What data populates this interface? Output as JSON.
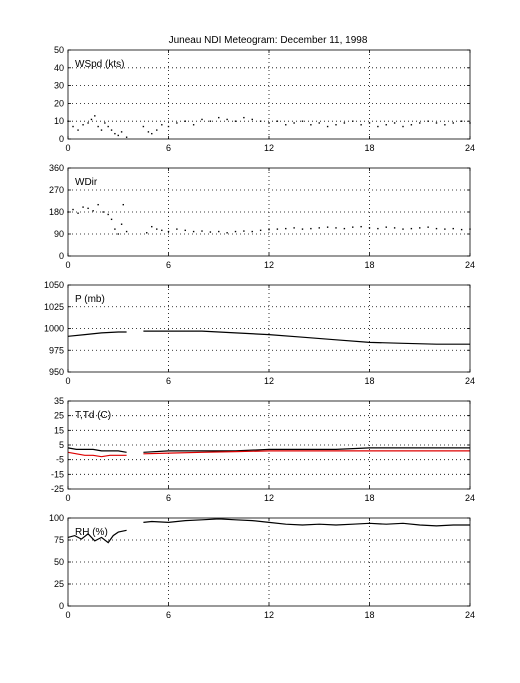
{
  "title": "Juneau NDI Meteogram:   December 11, 1998",
  "chart_data": [
    {
      "type": "scatter",
      "label": "WSpd (kts)",
      "xlim": [
        0,
        24
      ],
      "xticks": [
        0,
        6,
        12,
        18,
        24
      ],
      "ylim": [
        0,
        50
      ],
      "yticks": [
        0,
        10,
        20,
        30,
        40,
        50
      ],
      "grid": true,
      "series": [
        {
          "color": "#000000",
          "points": [
            [
              0.0,
              10
            ],
            [
              0.3,
              7
            ],
            [
              0.6,
              5
            ],
            [
              0.9,
              8
            ],
            [
              1.2,
              9
            ],
            [
              1.4,
              11
            ],
            [
              1.6,
              13
            ],
            [
              1.8,
              7
            ],
            [
              2.0,
              5
            ],
            [
              2.2,
              9
            ],
            [
              2.4,
              7
            ],
            [
              2.6,
              5
            ],
            [
              2.8,
              3
            ],
            [
              3.0,
              2
            ],
            [
              3.2,
              4
            ],
            [
              3.5,
              1
            ],
            [
              4.5,
              7
            ],
            [
              4.8,
              4
            ],
            [
              5.0,
              3
            ],
            [
              5.3,
              5
            ],
            [
              5.6,
              8
            ],
            [
              6.0,
              7
            ],
            [
              6.5,
              9
            ],
            [
              7.0,
              10
            ],
            [
              7.5,
              8
            ],
            [
              8.0,
              11
            ],
            [
              8.5,
              10
            ],
            [
              9.0,
              12
            ],
            [
              9.5,
              11
            ],
            [
              10.0,
              10
            ],
            [
              10.5,
              12
            ],
            [
              11.0,
              11
            ],
            [
              11.5,
              10
            ],
            [
              12.0,
              9
            ],
            [
              12.5,
              10
            ],
            [
              13.0,
              8
            ],
            [
              13.5,
              9
            ],
            [
              14.0,
              10
            ],
            [
              14.5,
              8
            ],
            [
              15.0,
              9
            ],
            [
              15.5,
              7
            ],
            [
              16.0,
              8
            ],
            [
              16.5,
              9
            ],
            [
              17.0,
              10
            ],
            [
              17.5,
              8
            ],
            [
              18.0,
              9
            ],
            [
              18.5,
              7
            ],
            [
              19.0,
              8
            ],
            [
              19.5,
              9
            ],
            [
              20.0,
              7
            ],
            [
              20.5,
              8
            ],
            [
              21.0,
              9
            ],
            [
              21.5,
              10
            ],
            [
              22.0,
              9
            ],
            [
              22.5,
              8
            ],
            [
              23.0,
              9
            ],
            [
              23.5,
              10
            ],
            [
              24.0,
              9
            ]
          ]
        }
      ]
    },
    {
      "type": "scatter",
      "label": "WDir",
      "xlim": [
        0,
        24
      ],
      "xticks": [
        0,
        6,
        12,
        18,
        24
      ],
      "ylim": [
        0,
        360
      ],
      "yticks": [
        0,
        90,
        180,
        270,
        360
      ],
      "grid": true,
      "series": [
        {
          "color": "#000000",
          "points": [
            [
              0.0,
              180
            ],
            [
              0.3,
              190
            ],
            [
              0.6,
              175
            ],
            [
              0.9,
              200
            ],
            [
              1.2,
              195
            ],
            [
              1.5,
              185
            ],
            [
              1.8,
              210
            ],
            [
              2.1,
              180
            ],
            [
              2.4,
              170
            ],
            [
              2.6,
              150
            ],
            [
              2.8,
              110
            ],
            [
              3.0,
              90
            ],
            [
              3.2,
              130
            ],
            [
              3.3,
              210
            ],
            [
              3.5,
              100
            ],
            [
              4.7,
              95
            ],
            [
              5.0,
              120
            ],
            [
              5.3,
              110
            ],
            [
              5.6,
              105
            ],
            [
              6.0,
              100
            ],
            [
              6.5,
              110
            ],
            [
              7.0,
              105
            ],
            [
              7.5,
              100
            ],
            [
              8.0,
              102
            ],
            [
              8.5,
              98
            ],
            [
              9.0,
              100
            ],
            [
              9.5,
              95
            ],
            [
              10.0,
              100
            ],
            [
              10.5,
              102
            ],
            [
              11.0,
              100
            ],
            [
              11.5,
              105
            ],
            [
              12.0,
              108
            ],
            [
              12.5,
              110
            ],
            [
              13.0,
              112
            ],
            [
              13.5,
              115
            ],
            [
              14.0,
              110
            ],
            [
              14.5,
              112
            ],
            [
              15.0,
              115
            ],
            [
              15.5,
              118
            ],
            [
              16.0,
              115
            ],
            [
              16.5,
              112
            ],
            [
              17.0,
              118
            ],
            [
              17.5,
              120
            ],
            [
              18.0,
              115
            ],
            [
              18.5,
              112
            ],
            [
              19.0,
              118
            ],
            [
              19.5,
              115
            ],
            [
              20.0,
              110
            ],
            [
              20.5,
              112
            ],
            [
              21.0,
              115
            ],
            [
              21.5,
              118
            ],
            [
              22.0,
              112
            ],
            [
              22.5,
              110
            ],
            [
              23.0,
              112
            ],
            [
              23.5,
              108
            ],
            [
              24.0,
              110
            ]
          ]
        }
      ]
    },
    {
      "type": "line",
      "label": "P (mb)",
      "xlim": [
        0,
        24
      ],
      "xticks": [
        0,
        6,
        12,
        18,
        24
      ],
      "ylim": [
        950,
        1050
      ],
      "yticks": [
        950,
        975,
        1000,
        1025,
        1050
      ],
      "grid": true,
      "series": [
        {
          "color": "#000000",
          "segments": [
            [
              [
                0.0,
                991
              ],
              [
                1.0,
                993
              ],
              [
                2.0,
                995
              ],
              [
                3.0,
                996
              ],
              [
                3.5,
                996
              ]
            ],
            [
              [
                4.5,
                997
              ],
              [
                6.0,
                997
              ],
              [
                8.0,
                997
              ],
              [
                10.0,
                995
              ],
              [
                12.0,
                993
              ],
              [
                14.0,
                990
              ],
              [
                16.0,
                987
              ],
              [
                18.0,
                984
              ],
              [
                20.0,
                983
              ],
              [
                22.0,
                982
              ],
              [
                24.0,
                982
              ]
            ]
          ]
        }
      ]
    },
    {
      "type": "line",
      "label": "T,Td (C)",
      "xlim": [
        0,
        24
      ],
      "xticks": [
        0,
        6,
        12,
        18,
        24
      ],
      "ylim": [
        -25,
        35
      ],
      "yticks": [
        -25,
        -15,
        -5,
        5,
        15,
        25,
        35
      ],
      "grid": true,
      "series": [
        {
          "color": "#000000",
          "segments": [
            [
              [
                0.0,
                3
              ],
              [
                0.5,
                2
              ],
              [
                1.0,
                2
              ],
              [
                1.5,
                2
              ],
              [
                2.0,
                1
              ],
              [
                2.5,
                1
              ],
              [
                3.0,
                1
              ],
              [
                3.5,
                0
              ]
            ],
            [
              [
                4.5,
                0
              ],
              [
                6.0,
                1
              ],
              [
                8.0,
                1
              ],
              [
                10.0,
                1
              ],
              [
                12.0,
                2
              ],
              [
                14.0,
                2
              ],
              [
                16.0,
                2
              ],
              [
                18.0,
                3
              ],
              [
                20.0,
                3
              ],
              [
                22.0,
                3
              ],
              [
                24.0,
                3
              ]
            ]
          ]
        },
        {
          "color": "#dd0000",
          "segments": [
            [
              [
                0.0,
                0
              ],
              [
                0.5,
                -1
              ],
              [
                1.0,
                -2
              ],
              [
                1.5,
                -2
              ],
              [
                2.0,
                -3
              ],
              [
                2.5,
                -2
              ],
              [
                3.0,
                -2
              ],
              [
                3.5,
                -2
              ]
            ],
            [
              [
                4.5,
                -1
              ],
              [
                6.0,
                -0.5
              ],
              [
                8.0,
                0
              ],
              [
                10.0,
                0.5
              ],
              [
                12.0,
                1
              ],
              [
                14.0,
                1
              ],
              [
                16.0,
                1
              ],
              [
                18.0,
                1
              ],
              [
                20.0,
                1
              ],
              [
                22.0,
                1
              ],
              [
                24.0,
                1
              ]
            ]
          ]
        }
      ]
    },
    {
      "type": "line",
      "label": "RH (%)",
      "xlim": [
        0,
        24
      ],
      "xticks": [
        0,
        6,
        12,
        18,
        24
      ],
      "ylim": [
        0,
        100
      ],
      "yticks": [
        0,
        25,
        50,
        75,
        100
      ],
      "grid": true,
      "series": [
        {
          "color": "#000000",
          "segments": [
            [
              [
                0.0,
                78
              ],
              [
                0.4,
                80
              ],
              [
                0.8,
                76
              ],
              [
                1.2,
                82
              ],
              [
                1.6,
                74
              ],
              [
                2.0,
                78
              ],
              [
                2.4,
                72
              ],
              [
                2.7,
                80
              ],
              [
                3.0,
                84
              ],
              [
                3.5,
                86
              ]
            ],
            [
              [
                4.5,
                95
              ],
              [
                5.0,
                96
              ],
              [
                6.0,
                95
              ],
              [
                7.0,
                97
              ],
              [
                8.0,
                98
              ],
              [
                9.0,
                99
              ],
              [
                10.0,
                98
              ],
              [
                11.0,
                97
              ],
              [
                12.0,
                95
              ],
              [
                13.0,
                93
              ],
              [
                14.0,
                92
              ],
              [
                15.0,
                93
              ],
              [
                16.0,
                92
              ],
              [
                17.0,
                93
              ],
              [
                18.0,
                94
              ],
              [
                19.0,
                93
              ],
              [
                20.0,
                94
              ],
              [
                21.0,
                92
              ],
              [
                22.0,
                91
              ],
              [
                23.0,
                92
              ],
              [
                24.0,
                92
              ]
            ]
          ]
        }
      ]
    }
  ]
}
